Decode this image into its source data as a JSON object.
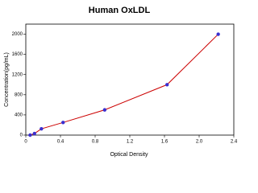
{
  "chart_data": {
    "type": "line",
    "title": "Human OxLDL",
    "x_label": "Optical Density",
    "y_label": "Concentration(pg/mL)",
    "x": [
      0.05,
      0.1,
      0.18,
      0.43,
      0.91,
      1.63,
      2.22
    ],
    "series": [
      {
        "color": "#cc0000",
        "marker_color": "#3a2fd0",
        "values": [
          0,
          31.25,
          125,
          250,
          500,
          1000,
          2000
        ]
      }
    ],
    "xlim": [
      0,
      2.4
    ],
    "ylim": [
      0,
      2200
    ],
    "xticks": [
      0,
      0.4,
      0.8,
      1.2,
      1.6,
      {
        "value": 2,
        "label": "2.0"
      },
      2.4
    ],
    "yticks": [
      0,
      400,
      800,
      1200,
      1600,
      2000
    ]
  }
}
